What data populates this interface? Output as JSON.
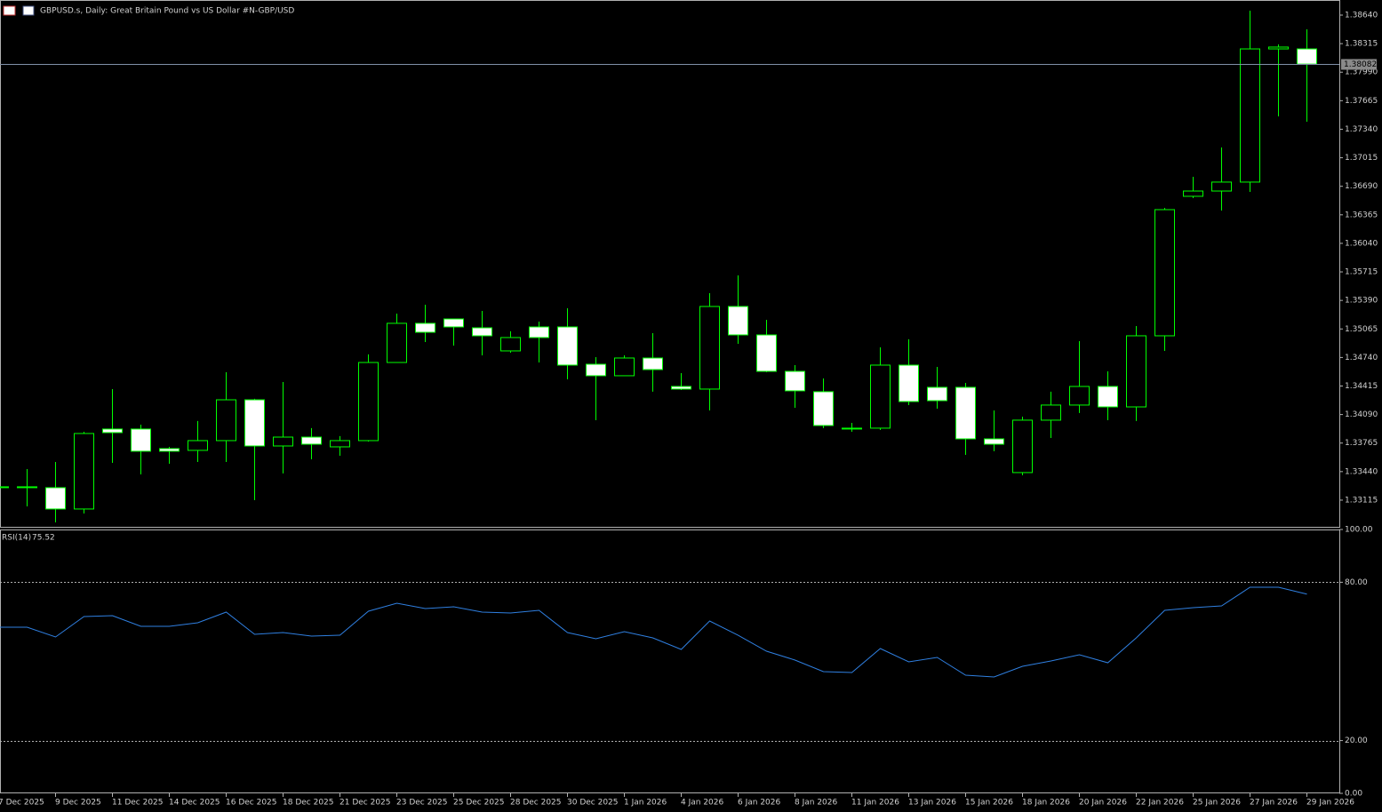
{
  "chart_data": [
    {
      "type": "candlestick",
      "title": "GBPUSD.s, Daily:  Great Britain Pound vs US Dollar #N-GBP/USD",
      "categories": [
        "7 Dec 2025",
        null,
        "9 Dec 2025",
        null,
        "11 Dec 2025",
        null,
        "14 Dec 2025",
        null,
        "16 Dec 2025",
        null,
        "18 Dec 2025",
        null,
        "21 Dec 2025",
        null,
        "23 Dec 2025",
        null,
        "25 Dec 2025",
        null,
        "28 Dec 2025",
        null,
        "30 Dec 2025",
        null,
        "1 Jan 2026",
        null,
        "4 Jan 2026",
        null,
        "6 Jan 2026",
        null,
        "8 Jan 2026",
        null,
        "11 Jan 2026",
        null,
        "13 Jan 2026",
        null,
        "15 Jan 2026",
        null,
        "18 Jan 2026",
        null,
        "20 Jan 2026",
        null,
        "22 Jan 2026",
        null,
        "25 Jan 2026",
        null,
        "27 Jan 2026",
        null,
        "29 Jan 2026"
      ],
      "open": [
        1.33267,
        1.33267,
        1.33257,
        1.33014,
        1.33925,
        1.33925,
        1.33702,
        1.33682,
        1.33793,
        1.34258,
        1.33732,
        1.33833,
        1.33722,
        1.33793,
        1.34683,
        1.35129,
        1.35179,
        1.35078,
        1.34815,
        1.35088,
        1.35088,
        1.34663,
        1.34532,
        1.34734,
        1.3441,
        1.3438,
        1.35321,
        1.34997,
        1.34582,
        1.3435,
        1.33935,
        1.33935,
        1.34653,
        1.344,
        1.344,
        1.33813,
        1.33429,
        1.34026,
        1.34198,
        1.3441,
        1.34177,
        1.34987,
        1.36576,
        1.36636,
        1.36738,
        1.38255,
        1.38255
      ],
      "high": [
        1.33287,
        1.33469,
        1.3355,
        1.33894,
        1.3438,
        1.33975,
        1.33722,
        1.34016,
        1.34572,
        1.34269,
        1.34461,
        1.33935,
        1.33844,
        1.34775,
        1.3524,
        1.35341,
        1.35179,
        1.3527,
        1.35038,
        1.35149,
        1.35301,
        1.34744,
        1.34764,
        1.35017,
        1.34562,
        1.35473,
        1.35675,
        1.35169,
        1.34653,
        1.34501,
        1.33995,
        1.34855,
        1.34947,
        1.34633,
        1.34451,
        1.34137,
        1.34066,
        1.3435,
        1.34926,
        1.34582,
        1.35098,
        1.36444,
        1.36798,
        1.37132,
        1.38691,
        1.38306,
        1.38478
      ],
      "low": [
        1.33246,
        1.33044,
        1.32862,
        1.32963,
        1.3354,
        1.33408,
        1.3353,
        1.3355,
        1.3355,
        1.33115,
        1.33419,
        1.3358,
        1.33621,
        1.33783,
        1.34683,
        1.34916,
        1.34876,
        1.34764,
        1.34795,
        1.34683,
        1.34491,
        1.34026,
        1.34532,
        1.3435,
        1.3437,
        1.34137,
        1.34896,
        1.34572,
        1.34167,
        1.33935,
        1.33894,
        1.33914,
        1.34198,
        1.34157,
        1.33631,
        1.33672,
        1.33398,
        1.33823,
        1.34107,
        1.34026,
        1.34016,
        1.34815,
        1.36555,
        1.36414,
        1.36626,
        1.37486,
        1.37426
      ],
      "close": [
        1.33267,
        1.33257,
        1.33014,
        1.33874,
        1.33884,
        1.33672,
        1.33672,
        1.33793,
        1.34258,
        1.33732,
        1.33833,
        1.33752,
        1.33793,
        1.34683,
        1.35129,
        1.35027,
        1.35088,
        1.34987,
        1.34967,
        1.34967,
        1.34653,
        1.34532,
        1.34734,
        1.34602,
        1.3438,
        1.35321,
        1.34997,
        1.34582,
        1.3436,
        1.33965,
        1.33925,
        1.34653,
        1.34238,
        1.34248,
        1.33813,
        1.33752,
        1.34026,
        1.34198,
        1.3441,
        1.34177,
        1.34987,
        1.36424,
        1.36636,
        1.36738,
        1.38255,
        1.38276,
        1.38082
      ],
      "up_color": "#000000",
      "down_color": "#ffffff",
      "outline_color": "#00ff00",
      "ylim": [
        1.32811,
        1.38812
      ],
      "yticks": [
        {
          "value": 1.3864,
          "label": "1.38640"
        },
        1.38315,
        {
          "value": 1.3799,
          "label": "1.37990"
        },
        1.37665,
        {
          "value": 1.3734,
          "label": "1.37340"
        },
        1.37015,
        {
          "value": 1.3669,
          "label": "1.36690"
        },
        1.36365,
        {
          "value": 1.3604,
          "label": "1.36040"
        },
        1.35715,
        {
          "value": 1.3539,
          "label": "1.35390"
        },
        1.35065,
        {
          "value": 1.3474,
          "label": "1.34740"
        },
        1.34415,
        {
          "value": 1.3409,
          "label": "1.34090"
        },
        1.33765,
        {
          "value": 1.3344,
          "label": "1.33440"
        },
        1.33115
      ],
      "current_price": 1.38082
    },
    {
      "type": "line",
      "title": "RSI(14)",
      "color": "#2f7fe0",
      "values": [
        62.96,
        62.96,
        59.26,
        67.0,
        67.34,
        63.3,
        63.3,
        64.65,
        68.69,
        60.27,
        60.94,
        59.6,
        59.93,
        69.02,
        72.05,
        70.03,
        70.71,
        68.69,
        68.35,
        69.36,
        60.94,
        58.59,
        61.28,
        58.92,
        54.55,
        65.32,
        59.93,
        53.87,
        50.51,
        46.13,
        45.79,
        54.88,
        49.83,
        51.52,
        44.78,
        44.11,
        48.15,
        50.17,
        52.53,
        49.49,
        58.92,
        69.36,
        70.37,
        71.04,
        78.11,
        78.11,
        75.52
      ],
      "ylim": [
        0,
        100
      ],
      "yticks": [
        {
          "value": 100,
          "label": "100.00"
        },
        {
          "value": 80,
          "label": "80.00"
        },
        {
          "value": 20,
          "label": "20.00"
        },
        {
          "value": 0,
          "label": "0.00"
        }
      ],
      "levels": [
        80,
        20
      ]
    }
  ]
}
